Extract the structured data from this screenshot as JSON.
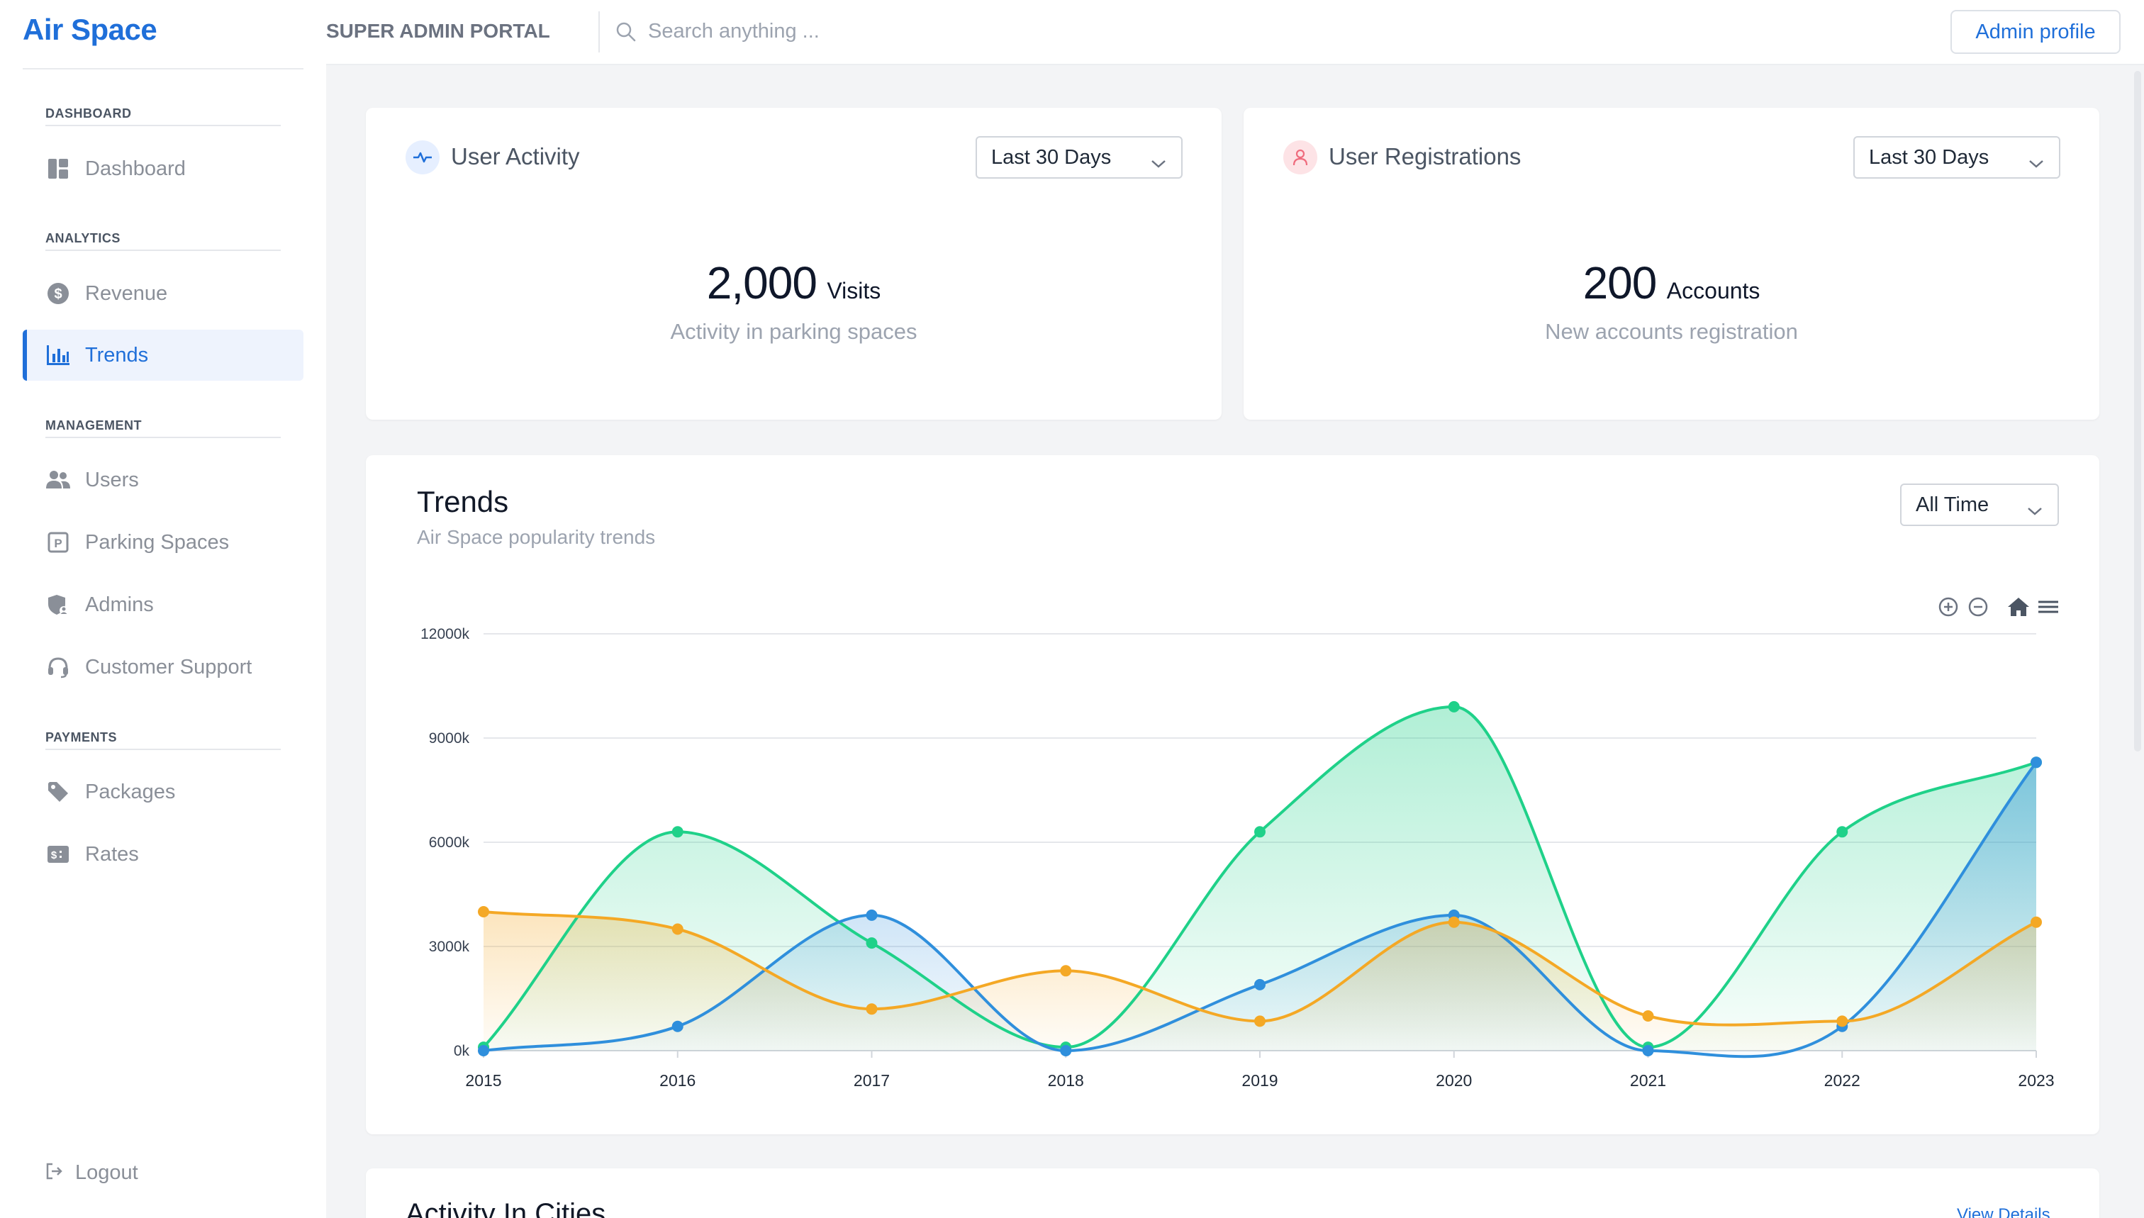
{
  "brand": {
    "name": "Air Space"
  },
  "sidebar": {
    "sections": [
      {
        "label": "DASHBOARD"
      },
      {
        "label": "ANALYTICS"
      },
      {
        "label": "MANAGEMENT"
      },
      {
        "label": "PAYMENTS"
      }
    ],
    "items": [
      {
        "label": "Dashboard",
        "icon": "dashboard-icon"
      },
      {
        "label": "Revenue",
        "icon": "dollar-icon"
      },
      {
        "label": "Trends",
        "icon": "bar-chart-icon",
        "active": true
      },
      {
        "label": "Users",
        "icon": "users-icon"
      },
      {
        "label": "Parking Spaces",
        "icon": "parking-icon"
      },
      {
        "label": "Admins",
        "icon": "shield-user-icon"
      },
      {
        "label": "Customer Support",
        "icon": "headset-icon"
      },
      {
        "label": "Packages",
        "icon": "tag-icon"
      },
      {
        "label": "Rates",
        "icon": "rates-icon"
      }
    ],
    "logout_label": "Logout"
  },
  "header": {
    "portal_title": "SUPER ADMIN PORTAL",
    "search_placeholder": "Search anything ...",
    "profile_label": "Admin profile"
  },
  "cards": {
    "activity": {
      "title": "User Activity",
      "period": "Last 30 Days",
      "value": "2,000",
      "unit": "Visits",
      "description": "Activity in parking spaces"
    },
    "registrations": {
      "title": "User Registrations",
      "period": "Last 30 Days",
      "value": "200",
      "unit": "Accounts",
      "description": "New accounts registration"
    }
  },
  "trends": {
    "title": "Trends",
    "subtitle": "Air Space popularity trends",
    "period": "All Time"
  },
  "cities": {
    "title": "Activity In Cities",
    "link": "View Details"
  },
  "colors": {
    "accent": "#1f6fd9",
    "green": "#1fd189",
    "blue": "#2f8fdc",
    "orange": "#f4a825"
  },
  "chart_data": {
    "type": "area",
    "categories": [
      "2015",
      "2016",
      "2017",
      "2018",
      "2019",
      "2020",
      "2021",
      "2022",
      "2023"
    ],
    "y_ticks": [
      "0k",
      "3000k",
      "6000k",
      "9000k",
      "12000k"
    ],
    "ylim": [
      0,
      12000
    ],
    "series": [
      {
        "color": "#1fd189",
        "values": [
          100,
          6300,
          3100,
          100,
          6300,
          9900,
          100,
          6300,
          8300
        ]
      },
      {
        "color": "#2f8fdc",
        "values": [
          0,
          700,
          3900,
          0,
          1900,
          3900,
          0,
          700,
          8300
        ]
      },
      {
        "color": "#f4a825",
        "values": [
          4000,
          3500,
          1200,
          2300,
          850,
          3700,
          1000,
          850,
          3700
        ]
      }
    ],
    "grid": true,
    "legend": "none"
  }
}
